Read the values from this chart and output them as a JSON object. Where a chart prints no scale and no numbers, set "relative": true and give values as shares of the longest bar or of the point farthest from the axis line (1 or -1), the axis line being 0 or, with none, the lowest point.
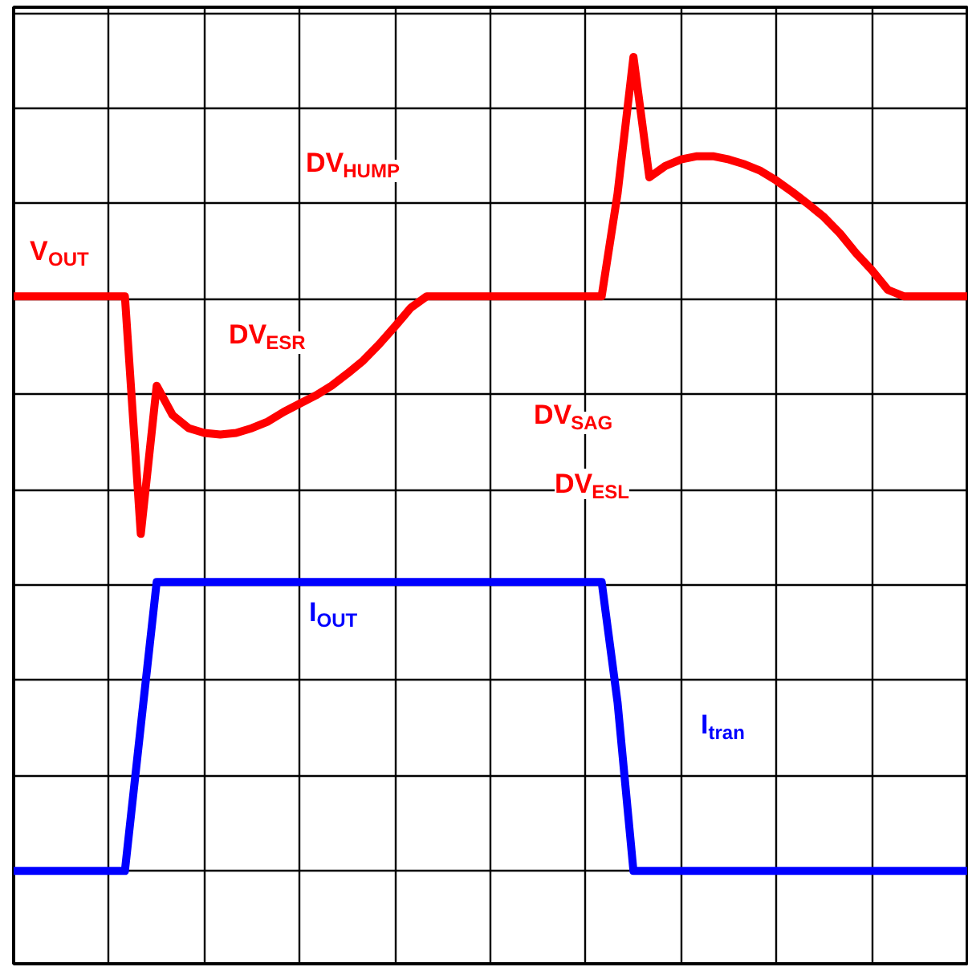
{
  "chart_data": {
    "type": "line",
    "relative": true,
    "grid": true,
    "tick_labels": false,
    "categories": [
      null,
      null,
      null,
      null,
      null,
      null,
      null,
      null,
      null,
      null,
      null,
      null,
      null,
      null,
      null,
      null,
      null,
      null,
      null,
      null,
      null,
      null,
      null,
      null,
      null,
      null,
      null,
      null,
      null,
      null,
      null,
      null,
      null,
      null,
      null,
      null,
      null,
      null,
      null,
      null,
      null,
      null,
      null,
      null,
      null,
      null,
      null,
      null,
      null,
      null,
      null,
      null,
      null,
      null,
      null,
      null,
      null,
      null,
      null,
      null,
      null
    ],
    "series": [
      {
        "color": "#ff0000",
        "values": [
          0.706,
          0.706,
          0.706,
          0.706,
          0.706,
          0.706,
          0.706,
          0.706,
          0.414,
          0.596,
          0.56,
          0.544,
          0.538,
          0.536,
          0.538,
          0.544,
          0.552,
          0.564,
          0.574,
          0.584,
          0.596,
          0.611,
          0.627,
          0.647,
          0.669,
          0.692,
          0.706,
          0.706,
          0.706,
          0.706,
          0.706,
          0.706,
          0.706,
          0.706,
          0.706,
          0.706,
          0.706,
          0.706,
          0.832,
          1,
          0.852,
          0.866,
          0.874,
          0.878,
          0.878,
          0.874,
          0.868,
          0.86,
          0.848,
          0.834,
          0.819,
          0.803,
          0.783,
          0.759,
          0.738,
          0.714,
          0.706,
          0.706,
          0.706,
          0.706,
          0.706
        ]
      },
      {
        "color": "#0000ff",
        "values": [
          0,
          0,
          0,
          0,
          0,
          0,
          0,
          0,
          0.178,
          0.355,
          0.355,
          0.355,
          0.355,
          0.355,
          0.355,
          0.355,
          0.355,
          0.355,
          0.355,
          0.355,
          0.355,
          0.355,
          0.355,
          0.355,
          0.355,
          0.355,
          0.355,
          0.355,
          0.355,
          0.355,
          0.355,
          0.355,
          0.355,
          0.355,
          0.355,
          0.355,
          0.355,
          0.355,
          0.207,
          0,
          0,
          0,
          0,
          0,
          0,
          0,
          0,
          0,
          0,
          0,
          0,
          0,
          0,
          0,
          0,
          0,
          0,
          0,
          0,
          0,
          0
        ]
      }
    ],
    "annotations": [
      "V$_{OUT}$",
      "DV$_{HUMP}$",
      "DV$_{ESR}$",
      "DV$_{SAG}$",
      "DV$_{ESL}$",
      "I$_{OUT}$",
      "I$_{tran}$"
    ]
  }
}
